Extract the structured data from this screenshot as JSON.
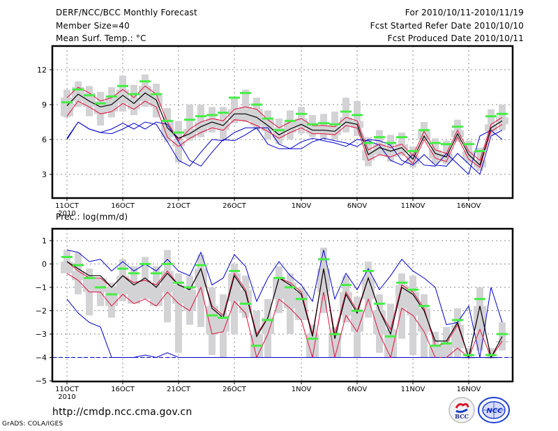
{
  "header": {
    "title": "DERF/NCC/BCC Monthly Forecast",
    "member_size": "Member Size=40",
    "variable_temp": "Mean Surf. Temp.: °C",
    "period": "For 2010/10/11-2010/11/19",
    "started": "Fcst Started Refer Date 2010/10/10",
    "produced": "Fcst Produced Date 2010/10/11"
  },
  "footer": {
    "url": "http://cmdp.ncc.cma.gov.cn",
    "credit": "GrADS: COLA/IGES",
    "logo_bcc": "BCC",
    "logo_ncc": "NCC"
  },
  "colors": {
    "mean": "#000000",
    "spread": "#e0103a",
    "extreme": "#0000cc",
    "obs": "#44ee44",
    "box": "#d3d3d6",
    "grid": "#888888"
  },
  "chart_data": [
    {
      "type": "line",
      "title": "Mean Surf. Temp.: °C",
      "ylabel": "°C",
      "ylim": [
        1,
        14
      ],
      "yticks": [
        3,
        6,
        9,
        12
      ],
      "xtick_labels": [
        "11OCT",
        "16OCT",
        "21OCT",
        "26OCT",
        "1NOV",
        "6NOV",
        "11NOV",
        "16NOV"
      ],
      "xtick_days": [
        0,
        5,
        10,
        15,
        21,
        26,
        31,
        36
      ],
      "year_label": "2010",
      "grid": true,
      "days": 40,
      "series": [
        {
          "name": "ensemble-max",
          "values": [
            6.1,
            7.5,
            6.9,
            6.6,
            6.5,
            6.9,
            7.4,
            6.9,
            7.5,
            7.3,
            5.8,
            4.2,
            3.7,
            4.9,
            6.0,
            5.9,
            6.4,
            7.0,
            7.0,
            5.6,
            5.2,
            5.2,
            5.8,
            6.1,
            5.9,
            5.7,
            5.4,
            6.0,
            5.9,
            5.5,
            4.2,
            3.8,
            4.7,
            3.8,
            3.7,
            4.8,
            3.9,
            3.0,
            6.3,
            6.8
          ]
        },
        {
          "name": "ensemble-upper",
          "values": [
            9.6,
            10.5,
            10.0,
            9.3,
            9.6,
            10.3,
            9.6,
            10.6,
            9.9,
            7.5,
            5.9,
            6.9,
            7.5,
            7.8,
            7.6,
            8.6,
            8.8,
            8.6,
            7.7,
            7.0,
            7.5,
            7.8,
            7.2,
            7.2,
            7.1,
            7.9,
            7.6,
            5.1,
            5.6,
            5.3,
            5.6,
            4.6,
            6.7,
            5.1,
            4.8,
            6.8,
            5.0,
            4.2,
            7.3,
            7.9
          ]
        },
        {
          "name": "ensemble-mean",
          "values": [
            8.9,
            9.9,
            9.3,
            8.8,
            9.0,
            9.8,
            9.1,
            10.0,
            9.4,
            7.0,
            6.1,
            6.5,
            7.1,
            7.5,
            7.2,
            8.2,
            8.2,
            7.9,
            7.2,
            6.4,
            6.9,
            7.3,
            6.8,
            6.8,
            6.7,
            7.5,
            7.3,
            4.7,
            5.3,
            5.0,
            5.3,
            4.3,
            6.3,
            4.8,
            4.5,
            6.5,
            4.7,
            3.8,
            7.0,
            7.6
          ]
        },
        {
          "name": "ensemble-lower",
          "values": [
            8.0,
            9.3,
            8.8,
            8.2,
            8.4,
            9.1,
            8.6,
            9.3,
            8.8,
            6.2,
            5.4,
            6.1,
            6.6,
            7.0,
            6.8,
            7.7,
            7.6,
            7.2,
            6.7,
            6.1,
            6.6,
            7.0,
            6.5,
            6.5,
            6.4,
            7.2,
            7.0,
            4.2,
            4.7,
            4.5,
            4.9,
            3.9,
            6.0,
            4.4,
            4.1,
            6.2,
            4.3,
            3.6,
            6.7,
            7.3
          ]
        },
        {
          "name": "ensemble-min",
          "values": [
            6.0,
            7.5,
            6.9,
            6.6,
            6.9,
            7.4,
            6.9,
            7.5,
            7.3,
            5.8,
            4.2,
            3.7,
            4.9,
            6.0,
            5.9,
            6.6,
            7.0,
            7.0,
            5.6,
            5.2,
            5.2,
            5.8,
            6.1,
            5.9,
            5.7,
            5.4,
            6.0,
            5.9,
            5.5,
            4.2,
            3.8,
            4.7,
            3.8,
            3.7,
            4.8,
            3.9,
            3.0,
            6.3,
            6.8,
            6.0
          ]
        },
        {
          "name": "observed",
          "values": [
            9.2,
            10.3,
            9.8,
            9.1,
            9.7,
            10.6,
            9.9,
            11.0,
            9.9,
            7.6,
            6.6,
            7.7,
            8.0,
            8.1,
            8.3,
            9.6,
            10.0,
            9.0,
            7.8,
            6.8,
            7.6,
            8.2,
            7.3,
            7.4,
            7.3,
            8.4,
            8.1,
            5.7,
            6.2,
            5.7,
            6.2,
            5.0,
            6.8,
            5.7,
            5.6,
            7.1,
            5.6,
            5.0,
            8.0,
            8.2
          ]
        },
        {
          "name": "box-high",
          "values": [
            10.3,
            11.0,
            10.6,
            10.1,
            10.5,
            11.5,
            10.7,
            11.6,
            10.8,
            8.7,
            7.6,
            9.0,
            9.0,
            8.8,
            8.8,
            9.6,
            10.3,
            9.6,
            8.5,
            7.8,
            8.5,
            8.8,
            8.1,
            8.2,
            8.4,
            9.6,
            9.3,
            6.2,
            6.8,
            6.4,
            6.6,
            5.4,
            7.5,
            6.1,
            5.9,
            7.7,
            5.9,
            5.3,
            8.6,
            9.0
          ]
        },
        {
          "name": "box-low",
          "values": [
            7.9,
            8.8,
            8.0,
            7.2,
            7.9,
            8.4,
            8.1,
            8.8,
            7.9,
            5.8,
            4.0,
            5.9,
            6.2,
            6.6,
            5.9,
            7.4,
            7.5,
            6.8,
            6.0,
            5.6,
            6.0,
            6.5,
            6.2,
            6.1,
            6.0,
            6.6,
            6.3,
            3.7,
            4.7,
            4.1,
            4.6,
            3.6,
            5.9,
            3.9,
            3.9,
            5.8,
            4.0,
            3.3,
            6.4,
            6.8
          ]
        }
      ]
    },
    {
      "type": "line",
      "title": "Prec.: log(mm/d)",
      "ylabel": "log(mm/d)",
      "ylim": [
        -5,
        1.5
      ],
      "yticks": [
        -5,
        -4,
        -3,
        -2,
        -1,
        0,
        1
      ],
      "xtick_labels": [
        "11OCT",
        "16OCT",
        "21OCT",
        "26OCT",
        "1NOV",
        "6NOV",
        "11NOV",
        "16NOV"
      ],
      "xtick_days": [
        0,
        5,
        10,
        15,
        21,
        26,
        31,
        36
      ],
      "year_label": "2010",
      "grid": true,
      "days": 40,
      "series": [
        {
          "name": "ensemble-max",
          "values": [
            0.6,
            0.5,
            0.1,
            0.2,
            -0.3,
            0.1,
            -0.3,
            0.0,
            -0.3,
            0.2,
            -0.3,
            -0.5,
            0.5,
            -0.9,
            -0.6,
            0.4,
            -0.1,
            -1.6,
            -0.6,
            0.1,
            -0.5,
            -0.9,
            -1.6,
            0.6,
            -1.5,
            -0.4,
            -1.1,
            -0.2,
            -1.1,
            -0.5,
            0.2,
            -0.3,
            -0.6,
            -1.0,
            -2.6,
            -2.5,
            -1.8,
            -4.0,
            -1.0,
            -2.5
          ]
        },
        {
          "name": "ensemble-upper",
          "values": [
            0.1,
            -0.3,
            -0.6,
            -0.6,
            -1.0,
            -0.5,
            -0.8,
            -0.7,
            -0.9,
            -0.3,
            -0.9,
            -1.1,
            -0.2,
            -1.8,
            -2.2,
            -0.4,
            -1.1,
            -3.0,
            -2.3,
            -0.6,
            -0.8,
            -1.2,
            -3.0,
            -0.2,
            -3.0,
            -1.2,
            -2.0,
            -0.6,
            -2.0,
            -2.8,
            -0.9,
            -1.2,
            -1.9,
            -3.5,
            -3.4,
            -2.6,
            -4.0,
            -1.8,
            -4.0,
            -3.3
          ]
        },
        {
          "name": "ensemble-mean",
          "values": [
            0.1,
            -0.2,
            -0.5,
            -0.5,
            -1.0,
            -0.5,
            -0.9,
            -0.6,
            -1.0,
            -0.4,
            -0.9,
            -1.1,
            -0.2,
            -1.9,
            -2.3,
            -0.5,
            -1.2,
            -3.1,
            -2.3,
            -0.6,
            -0.9,
            -1.3,
            -3.1,
            -0.2,
            -3.2,
            -1.3,
            -2.1,
            -0.6,
            -2.0,
            -3.0,
            -1.0,
            -1.3,
            -2.0,
            -3.3,
            -3.3,
            -2.5,
            -4.0,
            -1.8,
            -4.0,
            -3.1
          ]
        },
        {
          "name": "ensemble-lower",
          "values": [
            -0.4,
            -0.7,
            -1.2,
            -1.2,
            -1.8,
            -1.3,
            -1.7,
            -1.5,
            -1.8,
            -1.2,
            -1.7,
            -2.0,
            -1.0,
            -3.0,
            -2.9,
            -1.6,
            -2.1,
            -4.0,
            -3.0,
            -1.5,
            -1.9,
            -2.4,
            -4.0,
            -1.2,
            -4.0,
            -2.2,
            -2.9,
            -1.5,
            -3.0,
            -4.0,
            -1.9,
            -2.2,
            -2.9,
            -4.0,
            -4.0,
            -3.6,
            -4.0,
            -2.8,
            -4.0,
            -3.3
          ]
        },
        {
          "name": "ensemble-min",
          "values": [
            -1.5,
            -2.1,
            -2.5,
            -2.7,
            -4.0,
            -4.0,
            -4.0,
            -3.9,
            -4.0,
            -3.8,
            -4.0,
            -4.0,
            -4.0,
            -4.0,
            -4.0,
            -4.0,
            -4.0,
            -4.0,
            -4.0,
            -4.0,
            -4.0,
            -4.0,
            -4.0,
            -4.0,
            -4.0,
            -4.0,
            -4.0,
            -4.0,
            -4.0,
            -4.0,
            -4.0,
            -4.0,
            -4.0,
            -4.0,
            -4.0,
            -4.0,
            -4.0,
            -4.0,
            -4.0,
            -4.0
          ]
        },
        {
          "name": "observed",
          "values": [
            0.3,
            -0.05,
            -0.6,
            -1.0,
            -1.3,
            -0.2,
            -0.4,
            0.0,
            -0.4,
            0.0,
            -0.8,
            -1.0,
            -0.05,
            -2.2,
            -2.3,
            -0.3,
            -1.7,
            -3.5,
            -2.4,
            -0.6,
            -1.0,
            -1.5,
            -3.2,
            0.2,
            -3.0,
            -0.9,
            -2.0,
            -0.3,
            -1.7,
            -3.1,
            -0.8,
            -1.1,
            -1.8,
            -3.5,
            -3.4,
            -2.4,
            -3.9,
            -1.5,
            -3.9,
            -3.0
          ]
        },
        {
          "name": "box-high",
          "values": [
            0.6,
            0.5,
            -0.2,
            -0.6,
            -0.8,
            0.2,
            -0.1,
            0.3,
            -0.1,
            0.6,
            -0.4,
            -0.5,
            0.4,
            -1.0,
            -1.3,
            0.0,
            -0.5,
            -2.0,
            -1.5,
            -0.1,
            -0.4,
            -1.0,
            -2.6,
            0.7,
            -2.7,
            -0.5,
            -1.4,
            0.1,
            -1.3,
            -1.7,
            -0.4,
            -0.5,
            -1.3,
            -2.9,
            -2.7,
            -1.9,
            -3.6,
            -1.0,
            -3.6,
            -2.5
          ]
        },
        {
          "name": "box-low",
          "values": [
            -0.3,
            -1.3,
            -2.2,
            -1.8,
            -2.3,
            -1.6,
            -1.1,
            -1.0,
            -1.8,
            -2.5,
            -3.8,
            -2.6,
            -2.7,
            -3.9,
            -4.0,
            -3.0,
            -2.3,
            -4.0,
            -4.0,
            -2.1,
            -3.0,
            -2.2,
            -4.0,
            -2.1,
            -3.9,
            -2.5,
            -4.0,
            -2.3,
            -3.8,
            -3.7,
            -3.2,
            -3.9,
            -4.0,
            -4.0,
            -4.0,
            -4.0,
            -4.0,
            -3.7,
            -4.0,
            -3.7
          ]
        }
      ]
    }
  ]
}
